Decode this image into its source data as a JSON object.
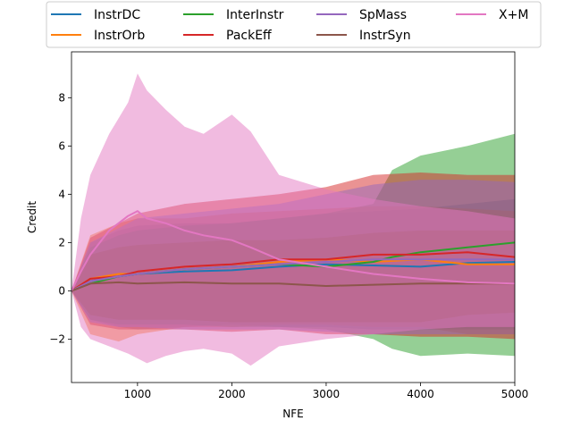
{
  "chart_data": {
    "type": "line",
    "title": "",
    "xlabel": "NFE",
    "ylabel": "Credit",
    "xlim": [
      300,
      5000
    ],
    "ylim": [
      -3.8,
      9.9
    ],
    "xticks": [
      1000,
      2000,
      3000,
      4000,
      5000
    ],
    "yticks": [
      -2,
      0,
      2,
      4,
      6,
      8
    ],
    "grid": false,
    "legend_position": "top-center",
    "legend_columns": 4,
    "series": [
      {
        "name": "InstrDC",
        "color": "#1f77b4",
        "x": [
          300,
          500,
          800,
          1000,
          1500,
          2000,
          2500,
          3000,
          3500,
          4000,
          4500,
          5000
        ],
        "y": [
          0,
          0.4,
          0.6,
          0.7,
          0.8,
          0.85,
          1.0,
          1.1,
          1.05,
          1.0,
          1.15,
          1.2
        ],
        "upper": [
          0,
          2.0,
          2.5,
          2.7,
          2.8,
          2.8,
          3.0,
          3.2,
          3.3,
          3.4,
          3.6,
          3.8
        ],
        "lower": [
          0,
          -1.2,
          -1.5,
          -1.6,
          -1.5,
          -1.4,
          -1.5,
          -1.5,
          -1.6,
          -1.6,
          -1.6,
          -1.6
        ]
      },
      {
        "name": "InstrOrb",
        "color": "#ff7f0e",
        "x": [
          300,
          500,
          800,
          1000,
          1500,
          2000,
          2500,
          3000,
          3500,
          4000,
          4500,
          5000
        ],
        "y": [
          0,
          0.5,
          0.7,
          0.7,
          0.9,
          1.0,
          1.2,
          1.3,
          1.2,
          1.3,
          1.1,
          1.1
        ],
        "upper": [
          0,
          2.3,
          2.8,
          3.0,
          3.0,
          3.2,
          3.3,
          3.4,
          3.5,
          3.5,
          3.4,
          3.3
        ],
        "lower": [
          0,
          -1.8,
          -2.1,
          -1.8,
          -1.5,
          -1.5,
          -1.4,
          -1.4,
          -1.5,
          -1.5,
          -1.8,
          -1.8
        ]
      },
      {
        "name": "InterInstr",
        "color": "#2ca02c",
        "x": [
          300,
          500,
          800,
          1000,
          1500,
          2000,
          2500,
          3000,
          3500,
          3700,
          4000,
          4500,
          5000
        ],
        "y": [
          0,
          0.3,
          0.6,
          0.7,
          0.9,
          1.0,
          1.1,
          1.0,
          1.2,
          1.4,
          1.6,
          1.8,
          2.0
        ],
        "upper": [
          0,
          1.8,
          2.3,
          2.5,
          2.7,
          2.8,
          3.0,
          3.2,
          3.6,
          5.0,
          5.6,
          6.0,
          6.5
        ],
        "lower": [
          0,
          -1.2,
          -1.4,
          -1.4,
          -1.4,
          -1.5,
          -1.5,
          -1.6,
          -2.0,
          -2.4,
          -2.7,
          -2.6,
          -2.7
        ]
      },
      {
        "name": "PackEff",
        "color": "#d62728",
        "x": [
          300,
          500,
          800,
          1000,
          1500,
          2000,
          2500,
          3000,
          3500,
          4000,
          4500,
          5000
        ],
        "y": [
          0,
          0.5,
          0.6,
          0.8,
          1.0,
          1.1,
          1.3,
          1.3,
          1.5,
          1.5,
          1.6,
          1.4
        ],
        "upper": [
          0,
          2.2,
          2.8,
          3.2,
          3.6,
          3.8,
          4.0,
          4.3,
          4.8,
          4.9,
          4.8,
          4.8
        ],
        "lower": [
          0,
          -1.4,
          -1.6,
          -1.6,
          -1.6,
          -1.7,
          -1.6,
          -1.8,
          -1.8,
          -1.9,
          -1.9,
          -2.0
        ]
      },
      {
        "name": "SpMass",
        "color": "#9467bd",
        "x": [
          300,
          500,
          800,
          1000,
          1500,
          2000,
          2500,
          3000,
          3500,
          4000,
          4500,
          5000
        ],
        "y": [
          0,
          0.4,
          0.6,
          0.7,
          0.9,
          1.0,
          1.1,
          1.2,
          1.3,
          1.3,
          1.3,
          1.3
        ],
        "upper": [
          0,
          2.0,
          2.6,
          3.0,
          3.2,
          3.4,
          3.6,
          4.0,
          4.4,
          4.6,
          4.6,
          4.5
        ],
        "lower": [
          0,
          -1.3,
          -1.5,
          -1.5,
          -1.6,
          -1.6,
          -1.6,
          -1.7,
          -1.8,
          -1.8,
          -1.8,
          -1.8
        ]
      },
      {
        "name": "InstrSyn",
        "color": "#8c564b",
        "x": [
          300,
          500,
          800,
          1000,
          1500,
          2000,
          2500,
          3000,
          3500,
          4000,
          4500,
          5000
        ],
        "y": [
          0,
          0.3,
          0.35,
          0.3,
          0.35,
          0.3,
          0.3,
          0.2,
          0.25,
          0.3,
          0.3,
          0.3
        ],
        "upper": [
          0,
          1.5,
          1.8,
          1.9,
          2.0,
          2.1,
          2.1,
          2.2,
          2.4,
          2.5,
          2.5,
          2.5
        ],
        "lower": [
          0,
          -1.0,
          -1.2,
          -1.2,
          -1.2,
          -1.3,
          -1.3,
          -1.3,
          -1.3,
          -1.3,
          -1.0,
          -0.9
        ]
      },
      {
        "name": "X+M",
        "color": "#e377c2",
        "x": [
          300,
          400,
          500,
          700,
          900,
          1000,
          1100,
          1300,
          1500,
          1700,
          2000,
          2200,
          2500,
          3000,
          3500,
          4000,
          4500,
          5000
        ],
        "y": [
          0,
          0.8,
          1.5,
          2.5,
          3.1,
          3.3,
          3.0,
          2.8,
          2.5,
          2.3,
          2.1,
          1.8,
          1.3,
          1.0,
          0.7,
          0.5,
          0.35,
          0.3
        ],
        "upper": [
          0,
          3.0,
          4.8,
          6.5,
          7.8,
          9.0,
          8.3,
          7.5,
          6.8,
          6.5,
          7.3,
          6.6,
          4.8,
          4.2,
          3.8,
          3.5,
          3.3,
          3.0
        ],
        "lower": [
          0,
          -1.5,
          -2.0,
          -2.3,
          -2.6,
          -2.8,
          -3.0,
          -2.7,
          -2.5,
          -2.4,
          -2.6,
          -3.1,
          -2.3,
          -2.0,
          -1.8,
          -1.6,
          -1.5,
          -1.5
        ]
      }
    ]
  }
}
